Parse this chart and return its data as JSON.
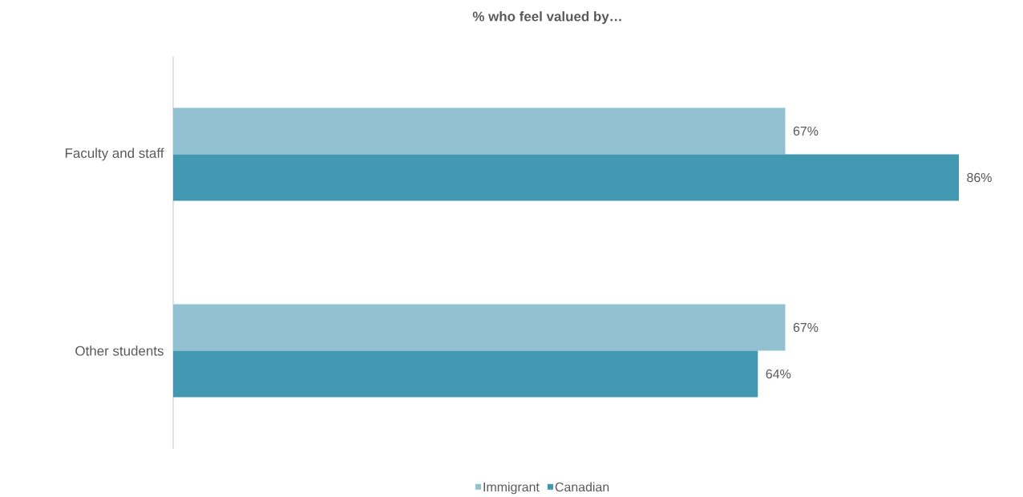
{
  "chart_data": {
    "type": "bar",
    "orientation": "horizontal",
    "title": "% who feel valued by…",
    "categories": [
      "Faculty and staff",
      "Other students"
    ],
    "series": [
      {
        "name": "Immigrant",
        "color": "#92c1d1",
        "values": [
          67,
          67
        ],
        "value_labels": [
          "67%",
          "67%"
        ]
      },
      {
        "name": "Canadian",
        "color": "#4198b0",
        "values": [
          86,
          64
        ],
        "value_labels": [
          "86%",
          "64%"
        ]
      }
    ],
    "legend": "bottom"
  }
}
